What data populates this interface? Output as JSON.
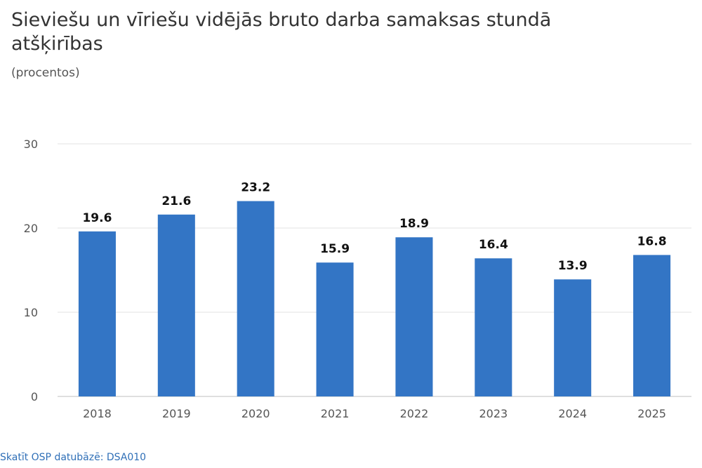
{
  "chart_data": {
    "type": "bar",
    "title": "Sieviešu un vīriešu vidējās bruto darba samaksas stundā atšķirības",
    "subtitle": "(procentos)",
    "xlabel": "",
    "ylabel": "",
    "categories": [
      "2018",
      "2019",
      "2020",
      "2021",
      "2022",
      "2023",
      "2024",
      "2025"
    ],
    "values": [
      19.6,
      21.6,
      23.2,
      15.9,
      18.9,
      16.4,
      13.9,
      16.8
    ],
    "data_labels": [
      "19.6",
      "21.6",
      "23.2",
      "15.9",
      "18.9",
      "16.4",
      "13.9",
      "16.8"
    ],
    "ylim": [
      0,
      30
    ],
    "yticks": [
      0,
      10,
      20,
      30
    ],
    "grid": true,
    "legend": "none",
    "bar_color": "#3375c5"
  },
  "footer": {
    "source_link": "Skatīt OSP datubāzē: DSA010"
  }
}
